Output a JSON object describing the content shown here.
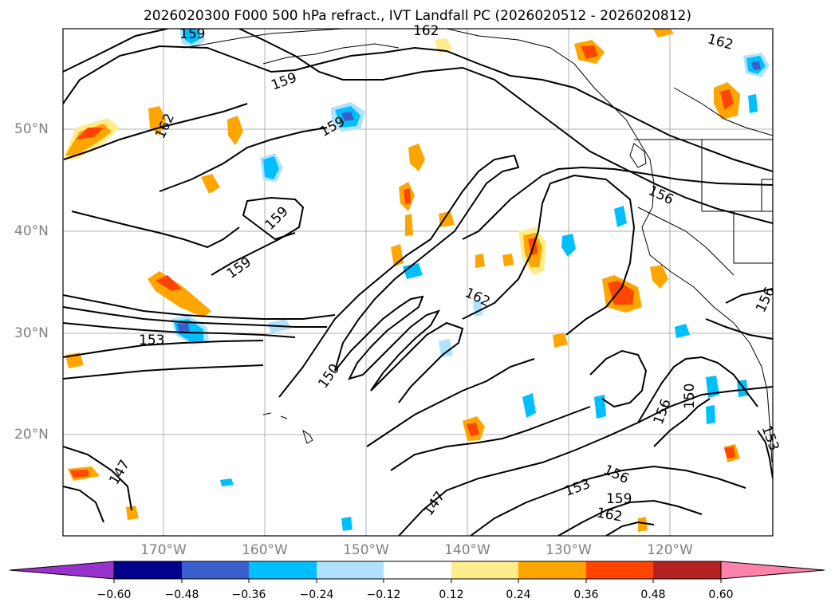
{
  "title": "2026020300 F000 500 hPa refract., IVT Landfall PC (2026020512 - 2026020812)",
  "lat_labels": [
    "50°N",
    "40°N",
    "30°N",
    "20°N"
  ],
  "lon_labels": [
    "170°W",
    "160°W",
    "150°W",
    "140°W",
    "130°W",
    "120°W"
  ],
  "contour_labels": [
    "159",
    "162",
    "159",
    "162",
    "159",
    "159",
    "159",
    "156",
    "162",
    "153",
    "162",
    "150",
    "147",
    "147",
    "153",
    "156",
    "159",
    "162",
    "156",
    "150",
    "153",
    "156"
  ],
  "colorbar": {
    "colors": [
      "#9932cc",
      "#00008b",
      "#3a5fcd",
      "#00bfff",
      "#b0e2ff",
      "#ffffff",
      "#ffec8b",
      "#ffa500",
      "#ff4500",
      "#b22222",
      "#ff82ab"
    ],
    "ticks": [
      "−0.60",
      "−0.48",
      "−0.36",
      "−0.24",
      "−0.12",
      "0.12",
      "0.24",
      "0.36",
      "0.48",
      "0.60"
    ]
  },
  "colors": {
    "gridline": "#b0b0b0",
    "contour": "#000000",
    "axis_label": "#808080"
  }
}
